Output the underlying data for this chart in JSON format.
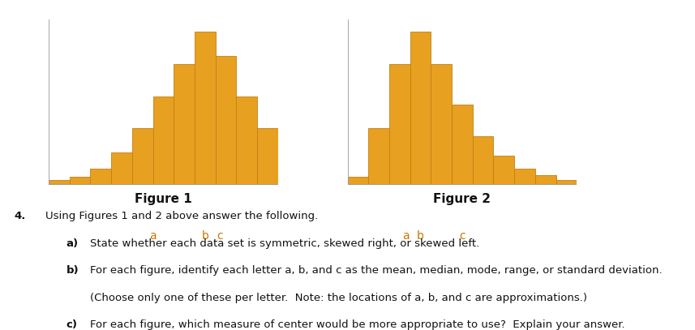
{
  "fig1_bars": [
    0.3,
    0.5,
    1.0,
    2.0,
    3.5,
    5.5,
    7.5,
    9.5,
    8.0,
    5.5,
    3.5
  ],
  "fig2_bars": [
    0.5,
    3.5,
    7.5,
    9.5,
    7.5,
    5.0,
    3.0,
    1.8,
    1.0,
    0.6,
    0.3
  ],
  "bar_color": "#E8A020",
  "bar_edge_color": "#C08018",
  "fig1_label": "Figure 1",
  "fig2_label": "Figure 2",
  "label_fontsize": 11,
  "marker_color": "#111111",
  "text_color": "#111111",
  "marker_label_color": "#CC7700",
  "fig1_marker_positions": {
    "a": 4.5,
    "b": 7.0,
    "c": 7.7
  },
  "fig2_marker_positions": {
    "a": 2.3,
    "b": 3.0,
    "c": 5.0
  },
  "q_number": "4.",
  "q_main": "Using Figures 1 and 2 above answer the following.",
  "q_a_bold": "a)",
  "q_a_text": "State whether each data set is symmetric, skewed right, or skewed left.",
  "q_b_bold": "b)",
  "q_b_text": "For each figure, identify each letter a, b, and c as the mean, median, mode, range, or standard deviation.",
  "q_b2_text": "(Choose only one of these per letter.  Note: the locations of a, b, and c are approximations.)",
  "q_c_bold": "c)",
  "q_c_text": "For each figure, which measure of center would be more appropriate to use?  Explain your answer.",
  "background_color": "#ffffff"
}
